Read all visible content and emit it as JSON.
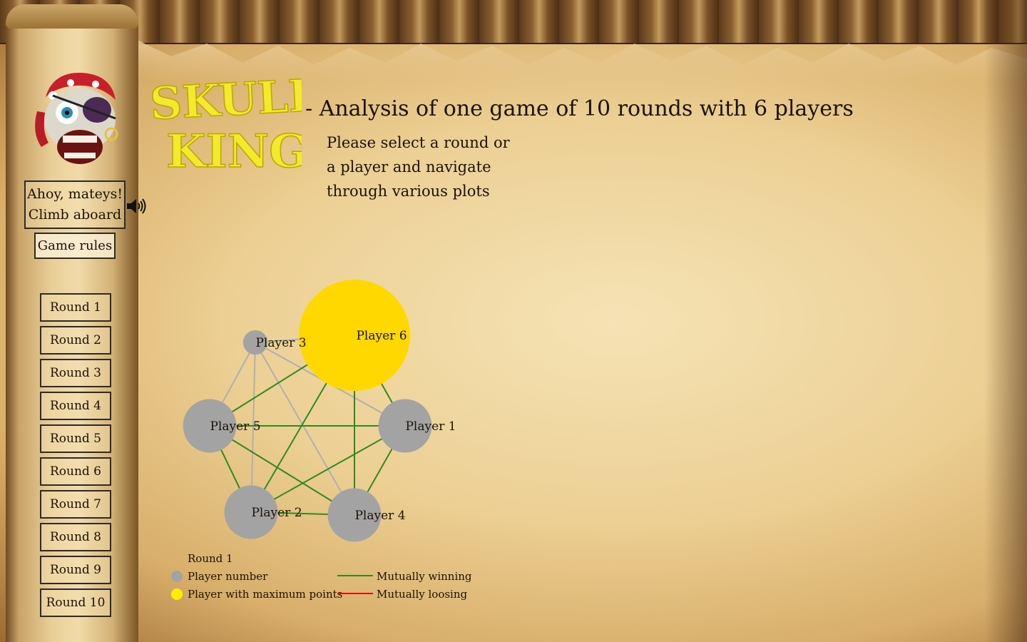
{
  "app": {
    "headline": "- Analysis of one game of 10 rounds with 6 players",
    "logo_text": "Skull King",
    "instructions": [
      "Please select a round or",
      "a player and navigate",
      "through various plots"
    ]
  },
  "sidebar": {
    "greeting": [
      "Ahoy, mateys!",
      "Climb aboard"
    ],
    "speaker_icon": "speaker-volume-icon",
    "rules_label": "Game rules",
    "rounds": [
      "Round 1",
      "Round 2",
      "Round 3",
      "Round 4",
      "Round 5",
      "Round 6",
      "Round 7",
      "Round 8",
      "Round 9",
      "Round 10"
    ]
  },
  "graph": {
    "title": "Round 1",
    "players": [
      {
        "name": "Player 6",
        "max": true,
        "points": 1.0
      },
      {
        "name": "Player 3",
        "max": false,
        "points": 0.22
      },
      {
        "name": "Player 5",
        "max": false,
        "points": 0.48
      },
      {
        "name": "Player 1",
        "max": false,
        "points": 0.48
      },
      {
        "name": "Player 2",
        "max": false,
        "points": 0.48
      },
      {
        "name": "Player 4",
        "max": false,
        "points": 0.48
      }
    ],
    "edges": [
      {
        "a": "Player 3",
        "b": "Player 5",
        "type": "neutral"
      },
      {
        "a": "Player 3",
        "b": "Player 2",
        "type": "neutral"
      },
      {
        "a": "Player 3",
        "b": "Player 4",
        "type": "neutral"
      },
      {
        "a": "Player 3",
        "b": "Player 1",
        "type": "neutral"
      },
      {
        "a": "Player 3",
        "b": "Player 6",
        "type": "neutral"
      },
      {
        "a": "Player 5",
        "b": "Player 6",
        "type": "winning"
      },
      {
        "a": "Player 5",
        "b": "Player 1",
        "type": "winning"
      },
      {
        "a": "Player 5",
        "b": "Player 2",
        "type": "winning"
      },
      {
        "a": "Player 5",
        "b": "Player 4",
        "type": "winning"
      },
      {
        "a": "Player 6",
        "b": "Player 1",
        "type": "winning"
      },
      {
        "a": "Player 6",
        "b": "Player 2",
        "type": "winning"
      },
      {
        "a": "Player 6",
        "b": "Player 4",
        "type": "winning"
      },
      {
        "a": "Player 1",
        "b": "Player 2",
        "type": "winning"
      },
      {
        "a": "Player 1",
        "b": "Player 4",
        "type": "winning"
      },
      {
        "a": "Player 2",
        "b": "Player 4",
        "type": "winning"
      }
    ],
    "legend": {
      "player_number": "Player number",
      "player_max": "Player with maximum points",
      "winning": "Mutually winning",
      "loosing": "Mutually loosing"
    },
    "colors": {
      "player": "#a3a3a3",
      "max_player": "#ffd800",
      "legend_max": "#ffee00",
      "winning": "#2e8b1e",
      "loosing": "#e01010",
      "neutral": "#b0b0b0"
    }
  }
}
